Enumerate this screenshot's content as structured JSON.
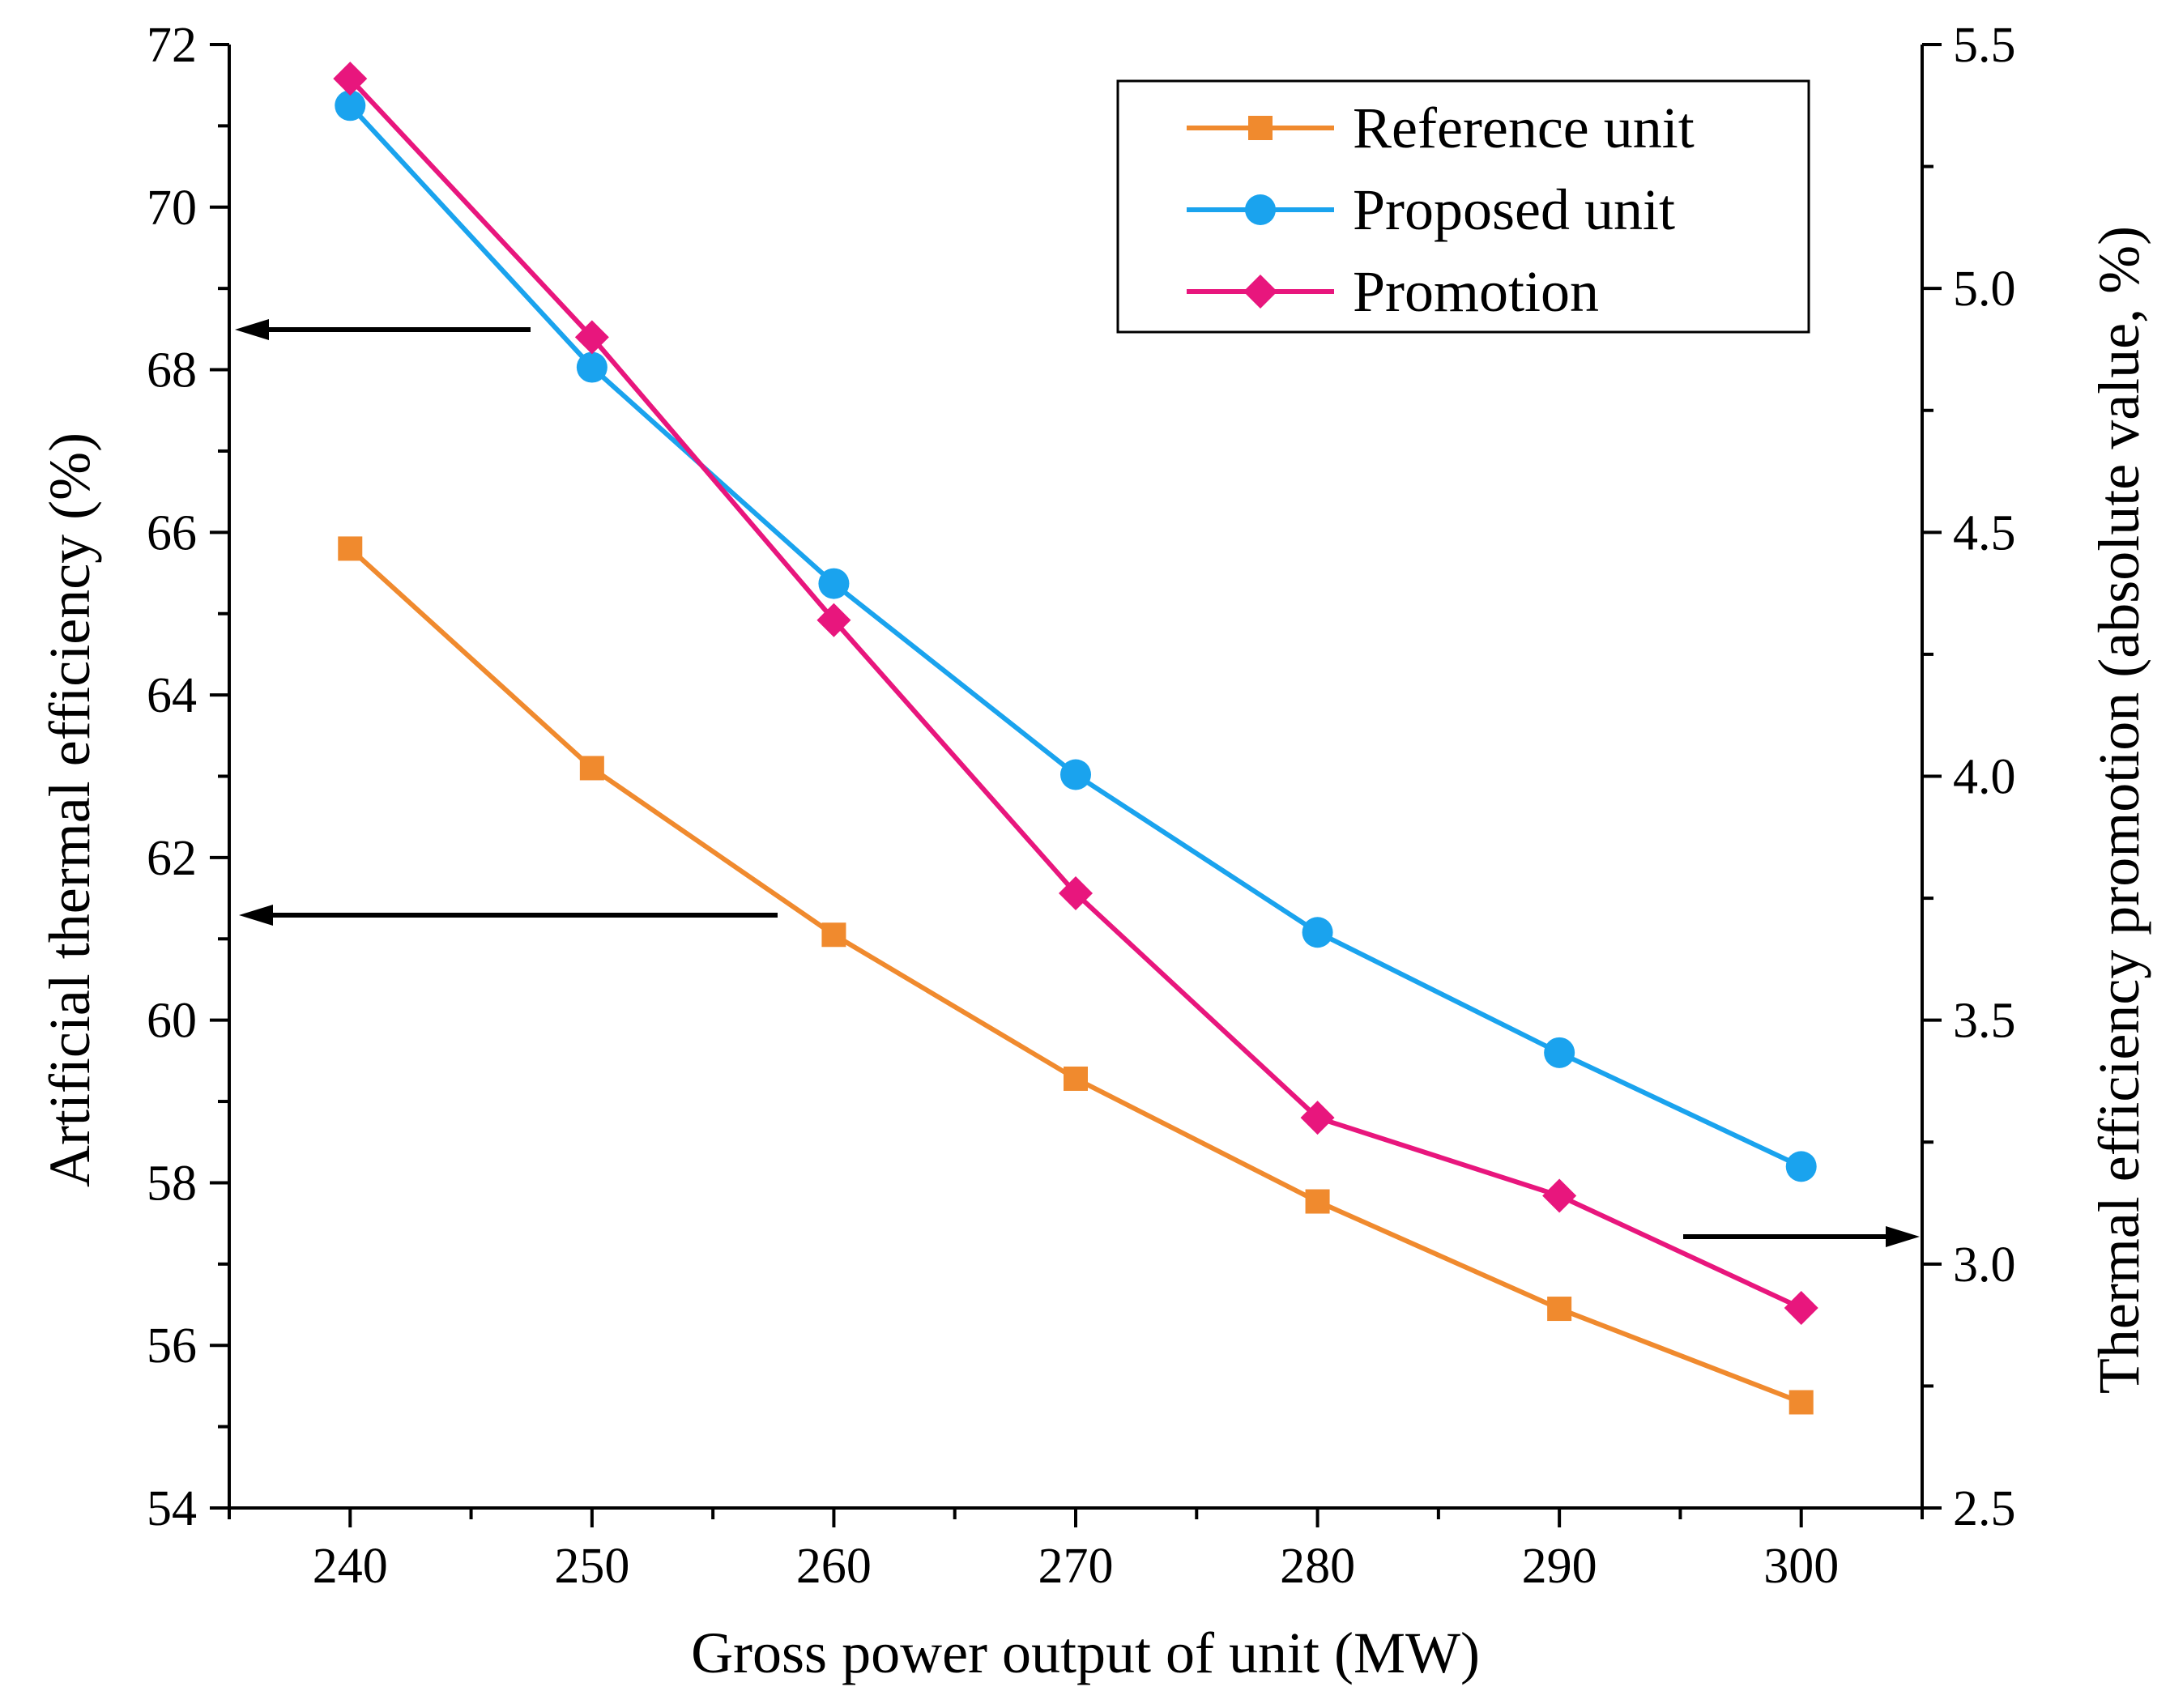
{
  "chart_data": {
    "type": "line",
    "title": "",
    "xlabel": "Gross power output of unit (MW)",
    "ylabel_left": "Artificial thermal efficiency (%)",
    "ylabel_right": "Thermal efficiency promotion (absolute value, %)",
    "xlim": [
      235,
      305
    ],
    "ylim_left": [
      54,
      72
    ],
    "ylim_right": [
      2.5,
      5.5
    ],
    "x_ticks": [
      "240",
      "250",
      "260",
      "270",
      "280",
      "290",
      "300"
    ],
    "y_left_ticks": [
      "54",
      "56",
      "58",
      "60",
      "62",
      "64",
      "66",
      "68",
      "70",
      "72"
    ],
    "y_right_ticks": [
      "2.5",
      "3.0",
      "3.5",
      "4.0",
      "4.5",
      "5.0",
      "5.5"
    ],
    "x": [
      240,
      250,
      260,
      270,
      280,
      290,
      300
    ],
    "series": [
      {
        "name": "Reference unit",
        "axis": "left",
        "marker": "square",
        "color": "#f08a2e",
        "values": [
          65.8,
          63.1,
          61.05,
          59.28,
          57.77,
          56.45,
          55.3
        ]
      },
      {
        "name": "Proposed unit",
        "axis": "left",
        "marker": "circle",
        "color": "#1aa3ee",
        "values": [
          71.25,
          68.03,
          65.37,
          63.02,
          61.08,
          59.6,
          58.2
        ]
      },
      {
        "name": "Promotion",
        "axis": "right",
        "marker": "diamond",
        "color": "#e8167d",
        "values": [
          5.43,
          4.9,
          4.32,
          3.76,
          3.3,
          3.14,
          2.91
        ]
      }
    ],
    "legend_position": "top-right",
    "grid": false,
    "annotations": [
      {
        "type": "arrow",
        "direction": "left",
        "points_to": "left axis",
        "near_series": "Proposed unit"
      },
      {
        "type": "arrow",
        "direction": "left",
        "points_to": "left axis",
        "near_series": "Reference unit"
      },
      {
        "type": "arrow",
        "direction": "right",
        "points_to": "right axis",
        "near_series": "Promotion"
      }
    ]
  }
}
